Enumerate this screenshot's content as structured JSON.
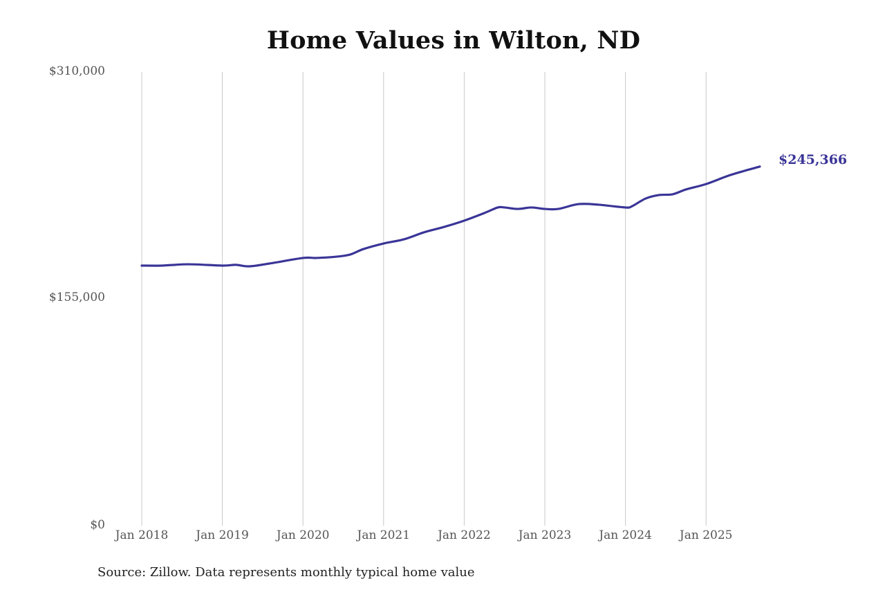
{
  "title": "Home Values in Wilton, ND",
  "y_axis": {
    "ticks": [
      "$310,000",
      "$155,000",
      "$0"
    ]
  },
  "x_axis": {
    "ticks": [
      "Jan 2018",
      "Jan 2019",
      "Jan 2020",
      "Jan 2021",
      "Jan 2022",
      "Jan 2023",
      "Jan 2024",
      "Jan 2025"
    ]
  },
  "end_label": "$245,366",
  "source": "Source: Zillow. Data represents monthly typical home value",
  "colors": {
    "line": "#3a3597",
    "gridline": "#c8c8c8",
    "title": "#111111",
    "axis_text": "#555555"
  },
  "chart_data": {
    "type": "line",
    "title": "Home Values in Wilton, ND",
    "xlabel": "",
    "ylabel": "",
    "ylim": [
      0,
      310000
    ],
    "yticks": [
      0,
      155000,
      310000
    ],
    "ytick_labels": [
      "$0",
      "$155,000",
      "$310,000"
    ],
    "xtick_labels": [
      "Jan 2018",
      "Jan 2019",
      "Jan 2020",
      "Jan 2021",
      "Jan 2022",
      "Jan 2023",
      "Jan 2024",
      "Jan 2025"
    ],
    "grid": {
      "vertical": true,
      "horizontal": false
    },
    "legend": "none",
    "annotation": {
      "text": "$245,366",
      "position": "end of line"
    },
    "series": [
      {
        "name": "Typical home value",
        "color": "#3a3597",
        "x": [
          "2018-01",
          "2018-04",
          "2018-08",
          "2019-01",
          "2019-03",
          "2019-05",
          "2019-08",
          "2020-01",
          "2020-03",
          "2020-06",
          "2020-08",
          "2020-10",
          "2021-01",
          "2021-04",
          "2021-07",
          "2021-10",
          "2022-01",
          "2022-04",
          "2022-06",
          "2022-07",
          "2022-09",
          "2022-11",
          "2023-01",
          "2023-03",
          "2023-06",
          "2023-09",
          "2024-01",
          "2024-02",
          "2024-04",
          "2024-06",
          "2024-08",
          "2024-10",
          "2025-01",
          "2025-04",
          "2025-06",
          "2025-09"
        ],
        "values": [
          177700,
          177700,
          178600,
          177700,
          178200,
          177200,
          179100,
          182900,
          182900,
          183800,
          185200,
          189000,
          192800,
          195600,
          200400,
          204100,
          208400,
          213600,
          217400,
          217400,
          216400,
          217400,
          216400,
          216400,
          219700,
          219300,
          217400,
          218300,
          223500,
          225900,
          226400,
          229700,
          233400,
          238600,
          241500,
          245366
        ]
      }
    ]
  }
}
